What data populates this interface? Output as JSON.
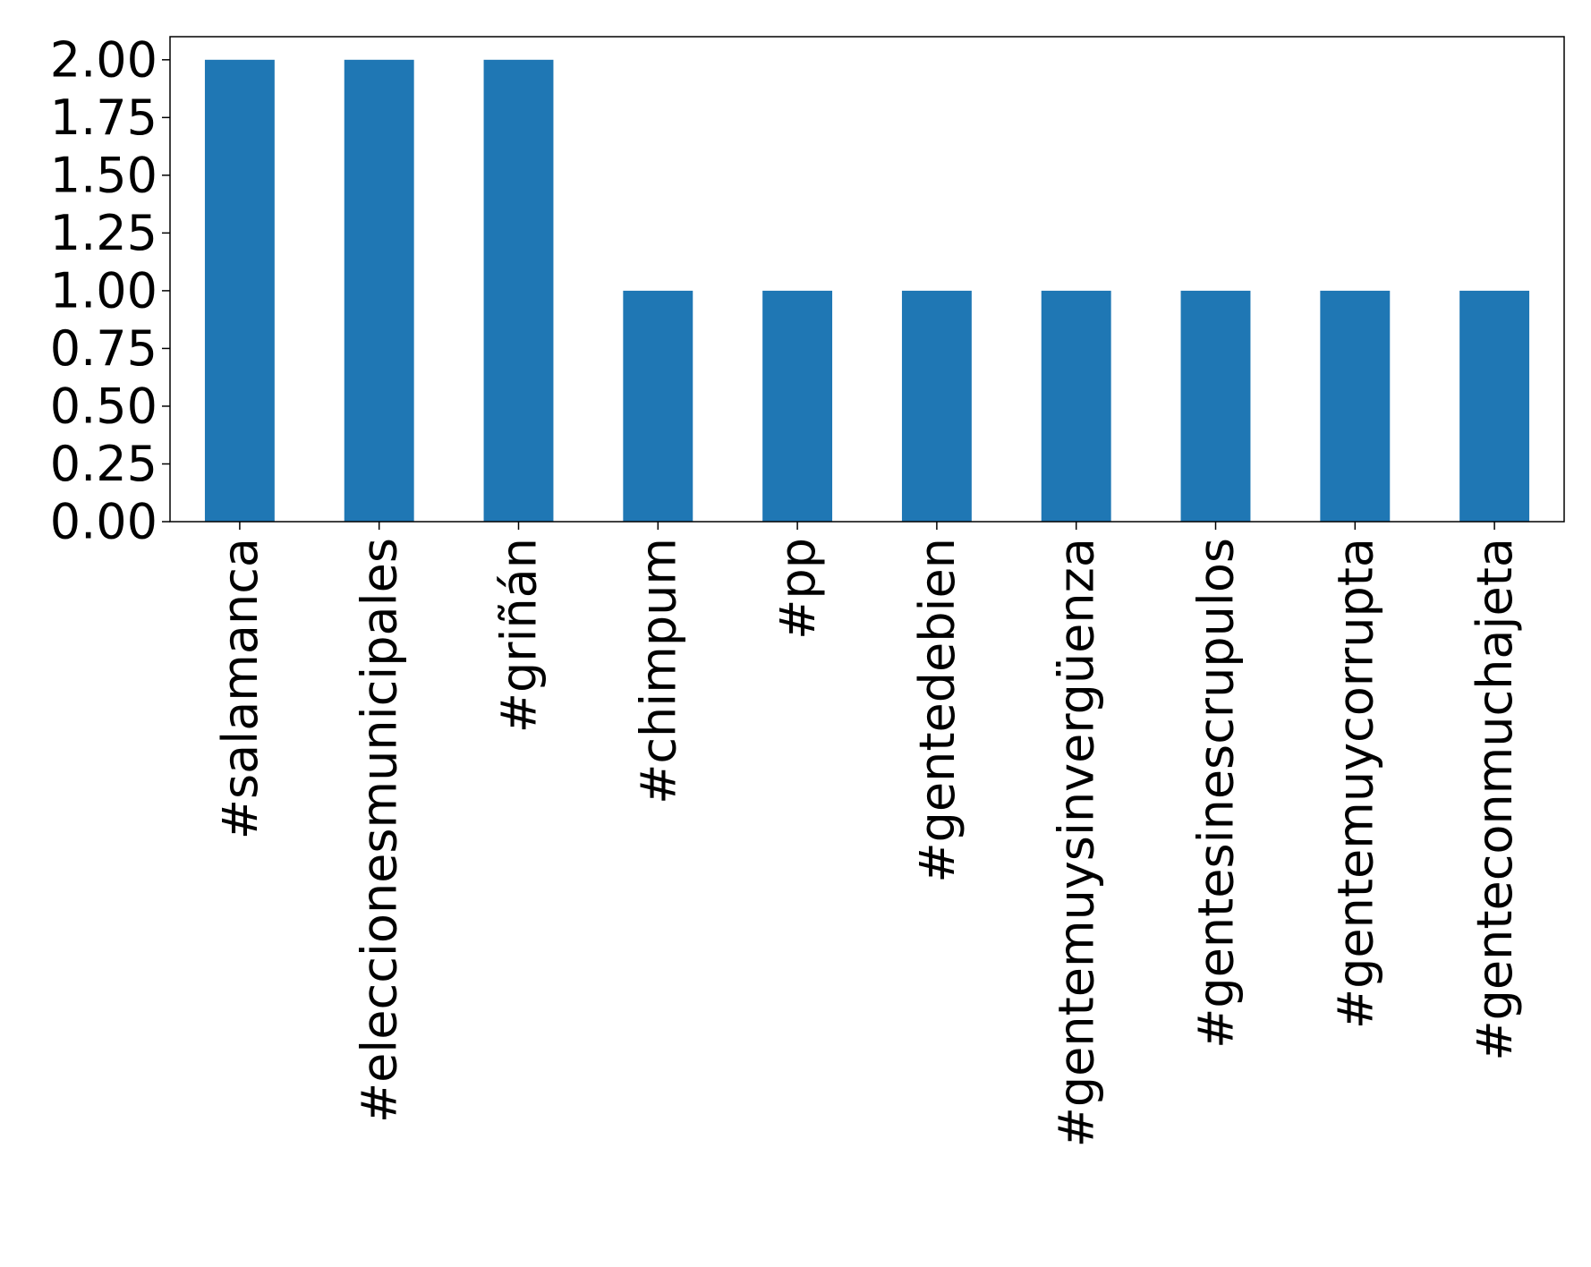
{
  "chart_data": {
    "type": "bar",
    "title": "",
    "xlabel": "",
    "ylabel": "",
    "categories": [
      "#salamanca",
      "#eleccionesmunicipales",
      "#griñán",
      "#chimpum",
      "#pp",
      "#gentedebien",
      "#gentemuysinvergüenza",
      "#gentesinescrupulos",
      "#gentemuycorrupta",
      "#genteconmuchajeta"
    ],
    "values": [
      2,
      2,
      2,
      1,
      1,
      1,
      1,
      1,
      1,
      1
    ],
    "ylim": [
      0,
      2.1
    ],
    "yticks": [
      "0.00",
      "0.25",
      "0.50",
      "0.75",
      "1.00",
      "1.25",
      "1.50",
      "1.75",
      "2.00"
    ],
    "ytick_values": [
      0,
      0.25,
      0.5,
      0.75,
      1.0,
      1.25,
      1.5,
      1.75,
      2.0
    ],
    "grid": false,
    "legend": "none",
    "bar_color": "#1f77b4",
    "axes_color": "#000000"
  }
}
